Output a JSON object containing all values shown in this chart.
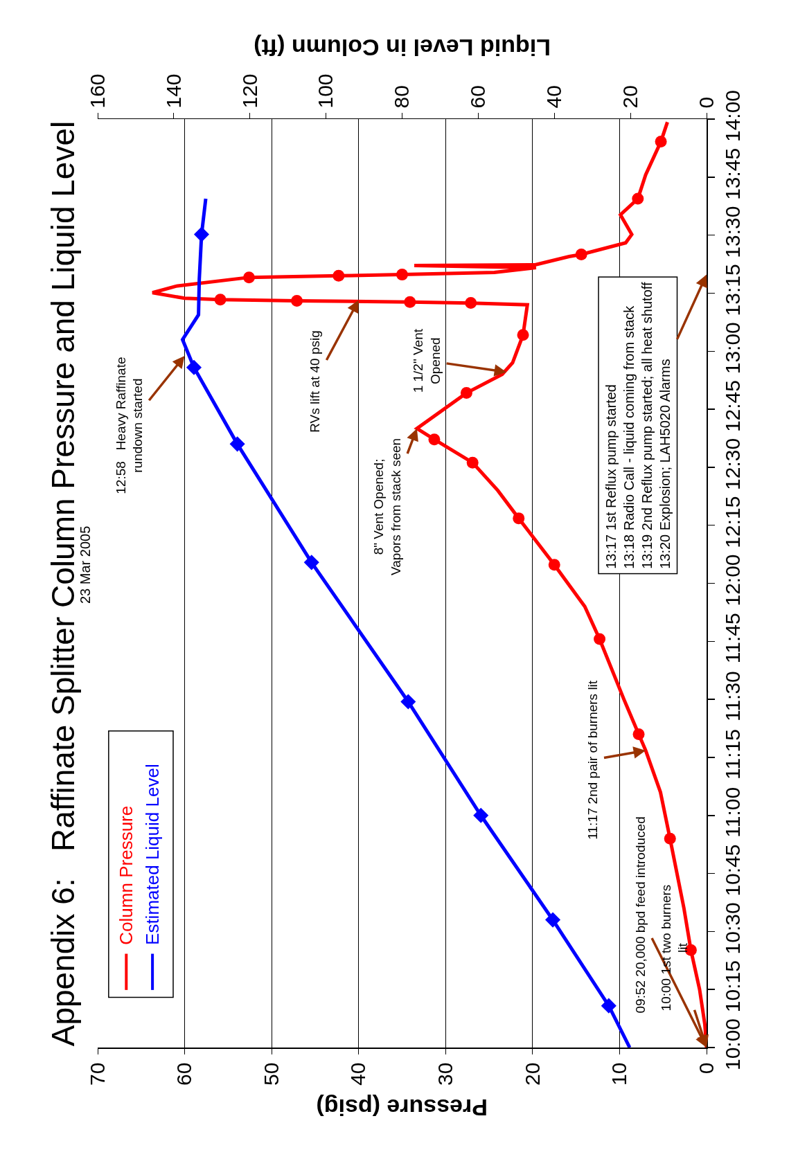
{
  "chart_data": {
    "type": "line",
    "title": "Appendix 6:   Raffinate Splitter Column Pressure and Liquid Level",
    "xlim": [
      70,
      0
    ],
    "xticks": [
      0,
      10,
      20,
      30,
      40,
      50,
      60,
      70
    ],
    "x2lim": [
      160,
      0
    ],
    "x2ticks": [
      0,
      20,
      40,
      60,
      80,
      100,
      120,
      140,
      160
    ],
    "ylim": [
      10,
      14
    ],
    "yticks": [
      {
        "value": 10,
        "label": "10:00"
      },
      {
        "value": 10.25,
        "label": "10:15"
      },
      {
        "value": 10.5,
        "label": "10:30"
      },
      {
        "value": 10.75,
        "label": "10:45"
      },
      {
        "value": 11,
        "label": "11:00"
      },
      {
        "value": 11.25,
        "label": "11:15"
      },
      {
        "value": 11.5,
        "label": "11:30"
      },
      {
        "value": 11.75,
        "label": "11:45"
      },
      {
        "value": 12,
        "label": "12:00"
      },
      {
        "value": 12.25,
        "label": "12:15"
      },
      {
        "value": 12.5,
        "label": "12:30"
      },
      {
        "value": 12.75,
        "label": "12:45"
      },
      {
        "value": 13,
        "label": "13:00"
      },
      {
        "value": 13.25,
        "label": "13:15"
      },
      {
        "value": 13.5,
        "label": "13:30"
      },
      {
        "value": 13.75,
        "label": "13:45"
      },
      {
        "value": 14,
        "label": "14:00"
      }
    ],
    "xlabel": "Pressure (psig)",
    "x2label": "Liquid Level in Column (ft)",
    "grid": "x",
    "legend": "bottom left",
    "line_style": "solid",
    "series": [
      {
        "name": "Column Pressure",
        "color": "#ff0000",
        "marker": "none",
        "values": [
          10,
          10.1,
          10.25,
          10.42,
          10.6,
          10.9,
          11.1,
          11.28,
          11.35,
          11.5,
          11.76,
          11.9,
          12.08,
          12.28,
          12.4,
          12.52,
          12.62,
          12.667,
          12.82,
          12.9,
          12.95,
          13.07,
          13.2,
          13.207,
          13.212,
          13.217,
          13.222,
          13.228,
          13.252,
          13.28,
          13.318,
          13.325,
          13.33,
          13.339,
          13.36,
          13.369,
          13.372,
          13.408,
          13.417,
          13.467,
          13.503,
          13.588,
          13.657,
          13.76,
          13.903,
          13.987
        ],
        "x": [
          0,
          0.2,
          0.8,
          1.8,
          2.6,
          4.2,
          5.3,
          7,
          7.8,
          9.5,
          12.3,
          14,
          17.5,
          21.6,
          24,
          26.9,
          31.3,
          33.3,
          27.6,
          23.5,
          22.3,
          21.1,
          20.6,
          27.1,
          34.1,
          47.1,
          55.9,
          60,
          63.7,
          61,
          52.6,
          42.3,
          35,
          24.4,
          19.6,
          33.6,
          19.7,
          15.8,
          14.4,
          9.3,
          8.6,
          9.9,
          7.9,
          7,
          5.25,
          4.5
        ]
      },
      {
        "type": "scatter",
        "color": "#ff0000",
        "marker": "circle",
        "values": [
          10.42,
          10.9,
          11.35,
          11.76,
          12.08,
          12.28,
          12.52,
          12.62,
          12.82,
          13.07,
          13.208,
          13.212,
          13.217,
          13.222,
          13.318,
          13.325,
          13.33,
          13.417,
          13.657,
          13.903
        ],
        "x": [
          1.8,
          4.2,
          7.8,
          12.3,
          17.5,
          21.6,
          26.9,
          31.3,
          27.6,
          21.1,
          27.1,
          34.1,
          47.1,
          55.9,
          52.6,
          42.3,
          35,
          14.4,
          7.9,
          5.25
        ]
      },
      {
        "name": "Estimated Liquid Level",
        "color": "#0000ff",
        "marker": "none",
        "axis": "x2",
        "values": [
          10,
          10.18,
          10.55,
          11,
          11.49,
          12.09,
          12.6,
          12.93,
          13.05,
          13.157,
          13.31,
          13.503,
          13.657
        ],
        "x": [
          20.2,
          25.7,
          40.4,
          59.3,
          78.4,
          103.8,
          123.3,
          134.7,
          137.7,
          133.5,
          133.3,
          132.7,
          131.6
        ]
      },
      {
        "type": "scatter",
        "color": "#0000ff",
        "marker": "diamond",
        "axis": "x2",
        "values": [
          10.18,
          10.55,
          11,
          11.49,
          12.09,
          12.6,
          12.93,
          13.503
        ],
        "x": [
          25.7,
          40.4,
          59.3,
          78.4,
          103.8,
          123.3,
          134.7,
          132.7
        ]
      }
    ],
    "annotations": [
      {
        "text": "09:52 20,000 bpd feed introduced",
        "x": 0,
        "y": 10
      },
      {
        "text": "10:00 1st two burners\nlit",
        "x": 0,
        "y": 10
      },
      {
        "text": "11:17 2nd pair of burners lit",
        "x": 7,
        "y": 11.28
      },
      {
        "text": "8\" Vent Opened;\nVapors from stack seen",
        "x": 33.3,
        "y": 12.667
      },
      {
        "text": "1 1/2\" Vent\nOpened",
        "x": 23,
        "y": 12.91
      },
      {
        "text": "RVs lift at 40 psig",
        "x": 40,
        "y": 13.22
      },
      {
        "text": "12:58   Heavy Raffinate\nrundown started",
        "x": 60,
        "y": 12.98
      },
      "13:17 1st Reflux pump started\n13:18 Radio Call - liquid coming from stack\n13:19 2nd Reflux pump started; all heat shutoff\n13:20 Explosion; LAH5020 Alarms",
      "23 Mar 2005"
    ]
  }
}
